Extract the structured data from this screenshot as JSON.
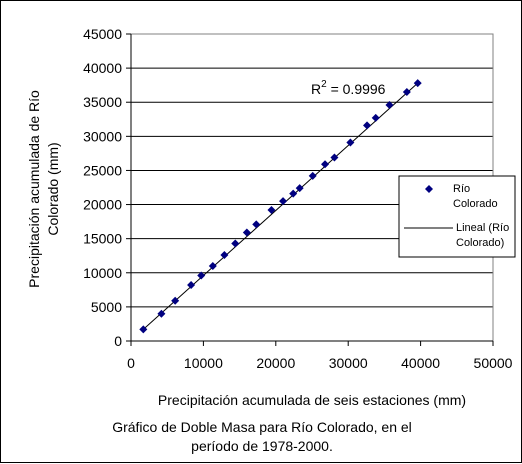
{
  "chart_data": {
    "type": "scatter",
    "xlabel": "Precipitación acumulada de seis estaciones (mm)",
    "ylabel_lines": [
      "Precipitación acumulada de Río",
      "Colorado (mm)"
    ],
    "xlim": [
      0,
      50000
    ],
    "ylim": [
      0,
      45000
    ],
    "xticks": [
      0,
      10000,
      20000,
      30000,
      40000,
      50000
    ],
    "yticks": [
      0,
      5000,
      10000,
      15000,
      20000,
      25000,
      30000,
      35000,
      40000,
      45000
    ],
    "xtick_labels": [
      "0",
      "10000",
      "20000",
      "30000",
      "40000",
      "50000"
    ],
    "ytick_labels": [
      "0",
      "5000",
      "10000",
      "15000",
      "20000",
      "25000",
      "30000",
      "35000",
      "40000",
      "45000"
    ],
    "grid": "horizontal",
    "series": [
      {
        "name": "Río Colorado",
        "marker": "diamond",
        "color": "#000080",
        "x": [
          1700,
          4200,
          6100,
          8300,
          9700,
          11300,
          12900,
          14400,
          16000,
          17300,
          19400,
          21000,
          22400,
          23300,
          25100,
          26800,
          28100,
          30300,
          32600,
          33800,
          35700,
          38100,
          39600
        ],
        "y": [
          1700,
          4000,
          5900,
          8200,
          9600,
          11000,
          12600,
          14300,
          15900,
          17100,
          19200,
          20500,
          21600,
          22400,
          24200,
          25900,
          26900,
          29100,
          31600,
          32700,
          34600,
          36500,
          37800
        ]
      }
    ],
    "trendline": {
      "name": "Lineal (Río Colorado)",
      "type": "linear",
      "x": [
        1700,
        39600
      ],
      "y": [
        1700,
        37800
      ],
      "color": "#000000"
    },
    "annotation_prefix": "R",
    "annotation_sup": "2",
    "annotation_value": " = 0.9996",
    "legend": {
      "position": "right",
      "entries": [
        {
          "label_lines": [
            "Río",
            "Colorado"
          ]
        },
        {
          "label_lines": [
            "Lineal (Río",
            "Colorado)"
          ]
        }
      ]
    }
  },
  "caption": {
    "line1": "Gráfico de Doble Masa para Río Colorado, en el",
    "line2": "período de 1978-2000."
  }
}
